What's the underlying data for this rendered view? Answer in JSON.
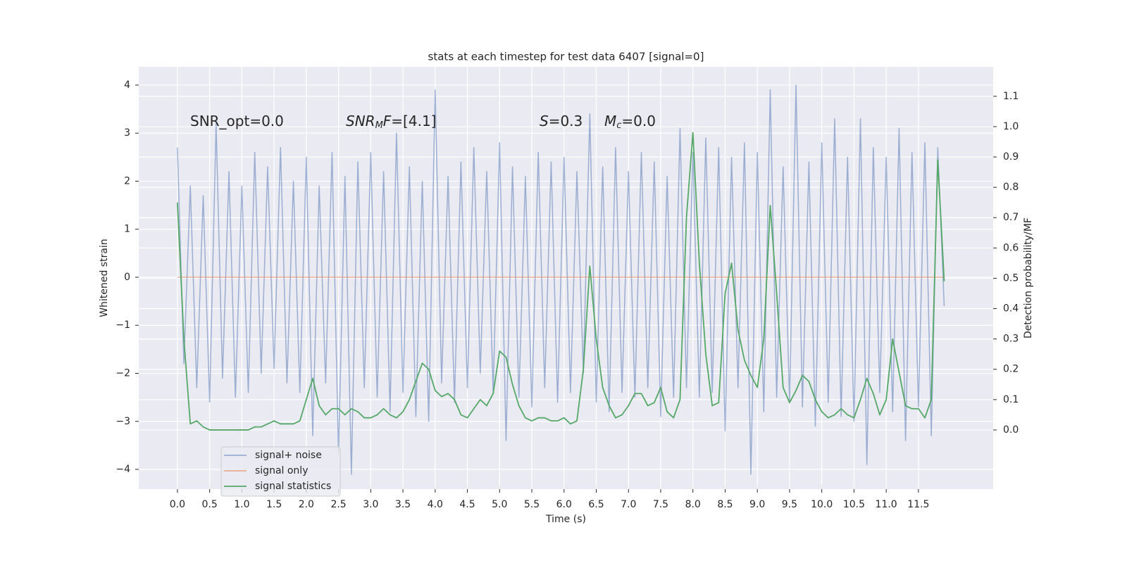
{
  "chart_data": {
    "type": "line",
    "title": "stats at each timestep for test data 6407 [signal=0]",
    "xlabel": "Time (s)",
    "ylabel": "Whitened strain",
    "y2label": "Detection probability/MF",
    "annotations": [
      [
        {
          "text": "SNR_opt=0.0"
        }
      ],
      [
        {
          "text": "SNR",
          "italic": true
        },
        {
          "text": "M",
          "italic": true,
          "sub": true
        },
        {
          "text": "F",
          "italic": true
        },
        {
          "text": "=[4.1]"
        }
      ],
      [
        {
          "text": "S",
          "italic": true
        },
        {
          "text": "=0.3"
        }
      ],
      [
        {
          "text": "M",
          "italic": true
        },
        {
          "text": "c",
          "italic": true,
          "sub": true
        },
        {
          "text": "=0.0"
        }
      ]
    ],
    "x": [
      0,
      0.1,
      0.2,
      0.3,
      0.4,
      0.5,
      0.6,
      0.7,
      0.8,
      0.9,
      1.0,
      1.1,
      1.2,
      1.3,
      1.4,
      1.5,
      1.6,
      1.7,
      1.8,
      1.9,
      2.0,
      2.1,
      2.2,
      2.3,
      2.4,
      2.5,
      2.6,
      2.7,
      2.8,
      2.9,
      3.0,
      3.1,
      3.2,
      3.3,
      3.4,
      3.5,
      3.6,
      3.7,
      3.8,
      3.9,
      4.0,
      4.1,
      4.2,
      4.3,
      4.4,
      4.5,
      4.6,
      4.7,
      4.8,
      4.9,
      5.0,
      5.1,
      5.2,
      5.3,
      5.4,
      5.5,
      5.6,
      5.7,
      5.8,
      5.9,
      6.0,
      6.1,
      6.2,
      6.3,
      6.4,
      6.5,
      6.6,
      6.7,
      6.8,
      6.9,
      7.0,
      7.1,
      7.2,
      7.3,
      7.4,
      7.5,
      7.6,
      7.7,
      7.8,
      7.9,
      8.0,
      8.1,
      8.2,
      8.3,
      8.4,
      8.5,
      8.6,
      8.7,
      8.8,
      8.9,
      9.0,
      9.1,
      9.2,
      9.3,
      9.4,
      9.5,
      9.6,
      9.7,
      9.8,
      9.9,
      10.0,
      10.1,
      10.2,
      10.3,
      10.4,
      10.5,
      10.6,
      10.7,
      10.8,
      10.9,
      11.0,
      11.1,
      11.2,
      11.3,
      11.4,
      11.5,
      11.6,
      11.7,
      11.8,
      11.9
    ],
    "series": [
      {
        "name": "signal+ noise",
        "color": "#4c72b0",
        "opacity": 0.5,
        "axis": "y",
        "values": [
          2.7,
          -1.8,
          1.9,
          -2.3,
          1.7,
          -2.6,
          3.2,
          -2.1,
          2.2,
          -2.5,
          1.9,
          -2.4,
          2.6,
          -2.0,
          2.3,
          -1.9,
          2.7,
          -2.2,
          2.0,
          -2.4,
          2.5,
          -3.3,
          1.9,
          -2.2,
          2.6,
          -3.7,
          2.1,
          -4.1,
          2.4,
          -2.3,
          2.6,
          -2.5,
          2.2,
          -2.8,
          3.0,
          -2.4,
          2.3,
          -2.9,
          2.0,
          -3.0,
          3.9,
          -2.2,
          2.1,
          -2.6,
          2.4,
          -2.3,
          2.7,
          -2.0,
          2.2,
          -2.4,
          2.8,
          -3.4,
          2.3,
          -2.5,
          2.1,
          -2.7,
          2.6,
          -2.3,
          2.4,
          -2.6,
          2.5,
          -2.4,
          2.2,
          -2.0,
          3.4,
          -2.6,
          2.3,
          -2.8,
          2.7,
          -2.4,
          2.2,
          -2.5,
          2.6,
          -2.3,
          2.4,
          -2.9,
          2.1,
          -2.5,
          3.1,
          -2.3,
          2.6,
          -2.5,
          2.9,
          -2.4,
          2.7,
          -3.2,
          2.5,
          -2.3,
          2.8,
          -4.1,
          2.6,
          -2.8,
          3.9,
          -2.5,
          2.3,
          -2.6,
          4.0,
          -2.7,
          2.4,
          -3.1,
          2.8,
          -2.6,
          3.3,
          -2.9,
          2.5,
          -3.0,
          3.3,
          -3.9,
          2.7,
          -2.4,
          2.5,
          -2.8,
          3.1,
          -3.4,
          2.6,
          -2.7,
          2.8,
          -3.3,
          2.7,
          -0.6
        ]
      },
      {
        "name": "signal only",
        "color": "#dd8452",
        "opacity": 0.6,
        "axis": "y",
        "values": [
          0,
          0,
          0,
          0,
          0,
          0,
          0,
          0,
          0,
          0,
          0,
          0,
          0,
          0,
          0,
          0,
          0,
          0,
          0,
          0,
          0,
          0,
          0,
          0,
          0,
          0,
          0,
          0,
          0,
          0,
          0,
          0,
          0,
          0,
          0,
          0,
          0,
          0,
          0,
          0,
          0,
          0,
          0,
          0,
          0,
          0,
          0,
          0,
          0,
          0,
          0,
          0,
          0,
          0,
          0,
          0,
          0,
          0,
          0,
          0,
          0,
          0,
          0,
          0,
          0,
          0,
          0,
          0,
          0,
          0,
          0,
          0,
          0,
          0,
          0,
          0,
          0,
          0,
          0,
          0,
          0,
          0,
          0,
          0,
          0,
          0,
          0,
          0,
          0,
          0,
          0,
          0,
          0,
          0,
          0,
          0,
          0,
          0,
          0,
          0,
          0,
          0,
          0,
          0,
          0,
          0,
          0,
          0,
          0,
          0,
          0,
          0,
          0,
          0,
          0,
          0,
          0,
          0,
          0,
          0
        ]
      },
      {
        "name": "signal statistics",
        "color": "#55a868",
        "opacity": 1,
        "axis": "y2",
        "values": [
          0.75,
          0.3,
          0.02,
          0.03,
          0.01,
          0.0,
          0.0,
          0.0,
          0.0,
          0.0,
          0.0,
          0.0,
          0.01,
          0.01,
          0.02,
          0.03,
          0.02,
          0.02,
          0.02,
          0.03,
          0.1,
          0.17,
          0.08,
          0.05,
          0.07,
          0.07,
          0.05,
          0.07,
          0.06,
          0.04,
          0.04,
          0.05,
          0.07,
          0.05,
          0.04,
          0.06,
          0.1,
          0.16,
          0.22,
          0.2,
          0.13,
          0.11,
          0.12,
          0.1,
          0.05,
          0.04,
          0.07,
          0.1,
          0.08,
          0.12,
          0.26,
          0.24,
          0.15,
          0.08,
          0.04,
          0.03,
          0.04,
          0.04,
          0.03,
          0.03,
          0.04,
          0.02,
          0.03,
          0.2,
          0.54,
          0.3,
          0.14,
          0.08,
          0.04,
          0.05,
          0.08,
          0.12,
          0.12,
          0.08,
          0.09,
          0.14,
          0.06,
          0.04,
          0.1,
          0.7,
          0.98,
          0.55,
          0.25,
          0.08,
          0.09,
          0.45,
          0.55,
          0.33,
          0.23,
          0.18,
          0.14,
          0.3,
          0.74,
          0.45,
          0.14,
          0.09,
          0.13,
          0.18,
          0.16,
          0.1,
          0.06,
          0.04,
          0.05,
          0.07,
          0.05,
          0.04,
          0.1,
          0.17,
          0.12,
          0.05,
          0.1,
          0.3,
          0.19,
          0.08,
          0.07,
          0.07,
          0.04,
          0.1,
          0.89,
          0.49
        ]
      }
    ],
    "xlim": [
      -0.6,
      12.66
    ],
    "ylim": [
      -4.41,
      4.38
    ],
    "y2lim": [
      -0.195,
      1.197
    ],
    "xticks": [
      {
        "value": 0,
        "label": "0.0"
      },
      0.5,
      {
        "value": 1,
        "label": "1.0"
      },
      1.5,
      {
        "value": 2,
        "label": "2.0"
      },
      2.5,
      {
        "value": 3,
        "label": "3.0"
      },
      3.5,
      {
        "value": 4,
        "label": "4.0"
      },
      4.5,
      {
        "value": 5,
        "label": "5.0"
      },
      5.5,
      {
        "value": 6,
        "label": "6.0"
      },
      6.5,
      {
        "value": 7,
        "label": "7.0"
      },
      7.5,
      {
        "value": 8,
        "label": "8.0"
      },
      8.5,
      {
        "value": 9,
        "label": "9.0"
      },
      9.5,
      {
        "value": 10,
        "label": "10.0"
      },
      10.5,
      {
        "value": 11,
        "label": "11.0"
      },
      11.5
    ],
    "yticks": [
      {
        "value": -4,
        "label": "−4"
      },
      {
        "value": -3,
        "label": "−3"
      },
      {
        "value": -2,
        "label": "−2"
      },
      {
        "value": -1,
        "label": "−1"
      },
      0,
      1,
      2,
      3,
      4
    ],
    "y2ticks": [
      {
        "value": 0,
        "label": "0.0"
      },
      0.1,
      0.2,
      0.3,
      0.4,
      0.5,
      0.6,
      0.7,
      0.8,
      0.9,
      {
        "value": 1,
        "label": "1.0"
      },
      1.1
    ],
    "grid": true,
    "legend": "lower left"
  }
}
